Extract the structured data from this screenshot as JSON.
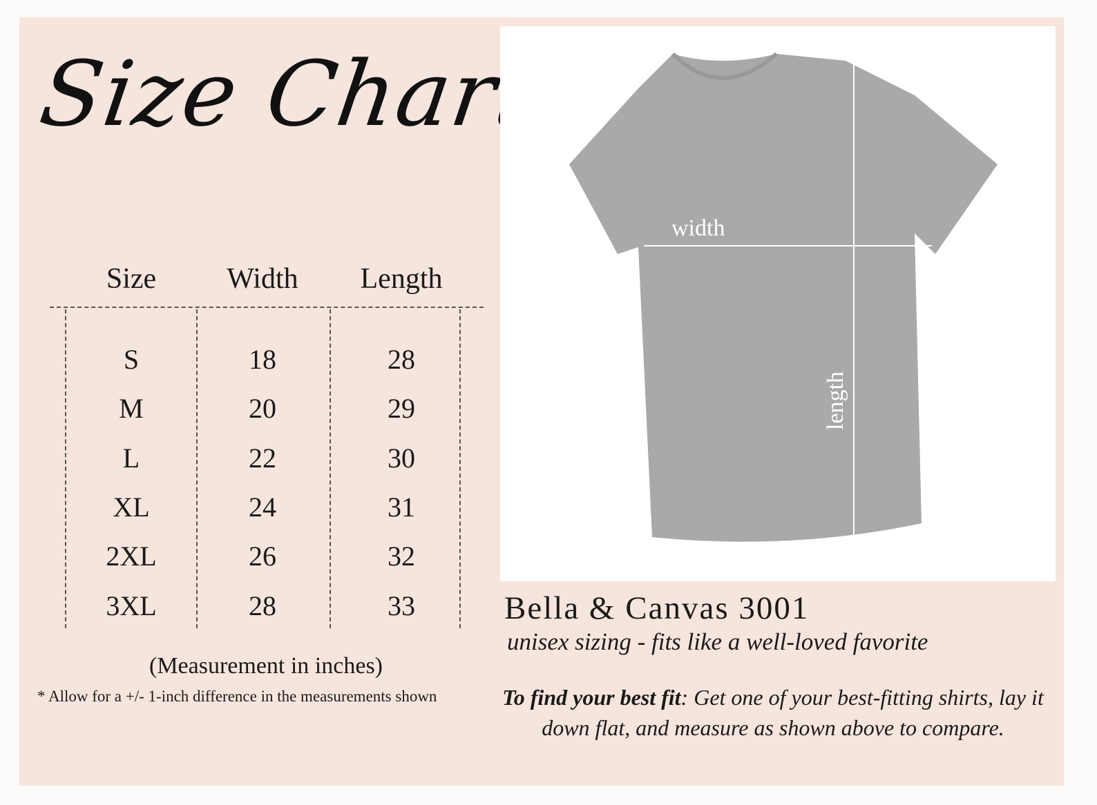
{
  "title": "Size Chart",
  "table": {
    "headers": [
      "Size",
      "Width",
      "Length"
    ],
    "rows": [
      [
        "S",
        "18",
        "28"
      ],
      [
        "M",
        "20",
        "29"
      ],
      [
        "L",
        "22",
        "30"
      ],
      [
        "XL",
        "24",
        "31"
      ],
      [
        "2XL",
        "26",
        "32"
      ],
      [
        "3XL",
        "28",
        "33"
      ]
    ]
  },
  "units_note": "(Measurement in inches)",
  "tolerance_note": "* Allow for a +/- 1-inch difference in the measurements shown",
  "photo": {
    "width_label": "width",
    "length_label": "length",
    "shirt_color": "#a9a9a9"
  },
  "product": {
    "name": "Bella & Canvas 3001",
    "tagline": "unisex sizing - fits like a well-loved favorite",
    "fit_lead": "To find your best fit",
    "fit_text": ": Get one of your best-fitting shirts, lay it down flat, and measure as shown above to compare."
  },
  "colors": {
    "background": "#f6e5dd",
    "text": "#1a1a1a"
  }
}
